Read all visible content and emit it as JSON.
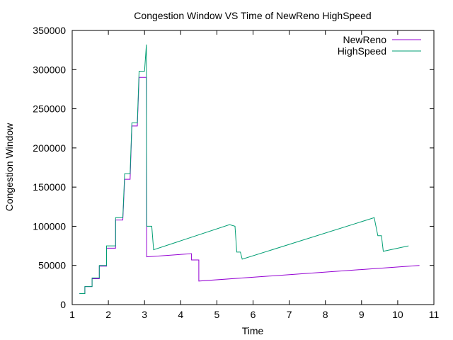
{
  "chart_data": {
    "type": "line",
    "title": "Congestion Window VS Time of NewReno  HighSpeed",
    "xlabel": "Time",
    "ylabel": "Congestion Window",
    "xlim": [
      1,
      11
    ],
    "ylim": [
      0,
      350000
    ],
    "xticks": [
      "1",
      "2",
      "3",
      "4",
      "5",
      "6",
      "7",
      "8",
      "9",
      "10",
      "11"
    ],
    "yticks": [
      "0",
      "50000",
      "100000",
      "150000",
      "200000",
      "250000",
      "300000",
      "350000"
    ],
    "grid": false,
    "legend_position": "top-right",
    "series": [
      {
        "name": "NewReno",
        "color": "#9400d3",
        "points": [
          [
            1.2,
            14000
          ],
          [
            1.35,
            14000
          ],
          [
            1.35,
            23000
          ],
          [
            1.55,
            23000
          ],
          [
            1.55,
            33000
          ],
          [
            1.75,
            33000
          ],
          [
            1.75,
            49000
          ],
          [
            1.95,
            49000
          ],
          [
            1.95,
            72000
          ],
          [
            2.2,
            72000
          ],
          [
            2.2,
            108000
          ],
          [
            2.4,
            108000
          ],
          [
            2.45,
            160000
          ],
          [
            2.6,
            160000
          ],
          [
            2.65,
            228000
          ],
          [
            2.8,
            228000
          ],
          [
            2.85,
            290000
          ],
          [
            3.05,
            290000
          ],
          [
            3.06,
            61000
          ],
          [
            4.3,
            65000
          ],
          [
            4.3,
            57000
          ],
          [
            4.5,
            57000
          ],
          [
            4.5,
            30000
          ],
          [
            10.6,
            50000
          ]
        ]
      },
      {
        "name": "HighSpeed",
        "color": "#009e73",
        "points": [
          [
            1.2,
            14000
          ],
          [
            1.35,
            14000
          ],
          [
            1.35,
            23000
          ],
          [
            1.55,
            23000
          ],
          [
            1.55,
            34000
          ],
          [
            1.75,
            34000
          ],
          [
            1.75,
            50000
          ],
          [
            1.95,
            50000
          ],
          [
            1.95,
            75000
          ],
          [
            2.2,
            75000
          ],
          [
            2.2,
            111000
          ],
          [
            2.4,
            111000
          ],
          [
            2.45,
            167000
          ],
          [
            2.6,
            167000
          ],
          [
            2.65,
            232000
          ],
          [
            2.8,
            232000
          ],
          [
            2.85,
            298000
          ],
          [
            3.0,
            298000
          ],
          [
            3.05,
            332000
          ],
          [
            3.06,
            100000
          ],
          [
            3.2,
            100000
          ],
          [
            3.25,
            70000
          ],
          [
            5.35,
            102000
          ],
          [
            5.5,
            100000
          ],
          [
            5.55,
            67000
          ],
          [
            5.65,
            67000
          ],
          [
            5.7,
            58000
          ],
          [
            9.35,
            111000
          ],
          [
            9.45,
            88000
          ],
          [
            9.55,
            88000
          ],
          [
            9.6,
            68000
          ],
          [
            10.3,
            75000
          ]
        ]
      }
    ]
  }
}
